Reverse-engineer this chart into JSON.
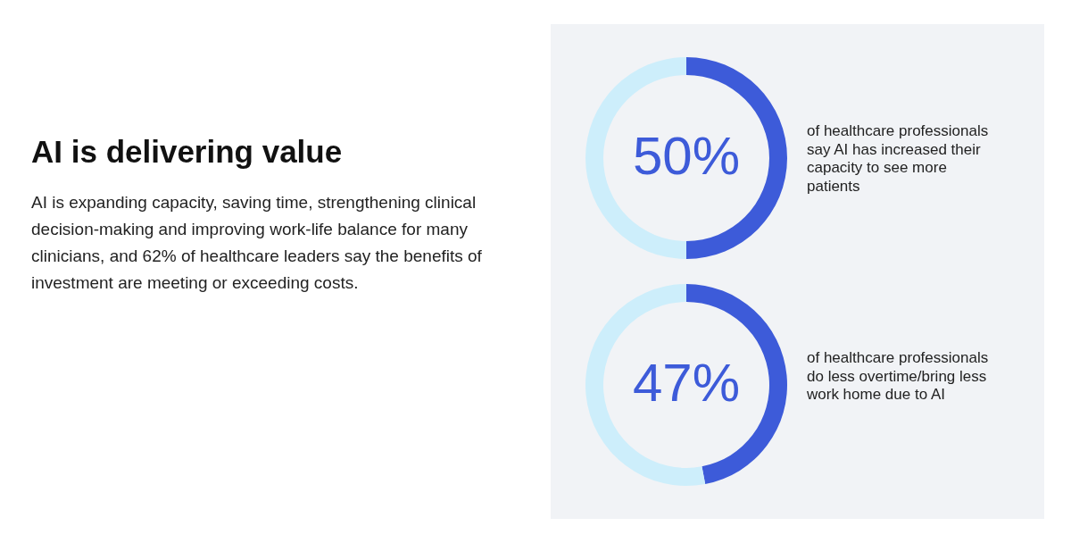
{
  "chart_data": [
    {
      "type": "other",
      "title": "AI is delivering value",
      "subtitle": "AI is expanding capacity, saving time, strengthening clinical decision-making and improving work-life balance for many clinicians, and 62% of healthcare leaders say the benefits of investment are meeting or exceeding costs."
    },
    {
      "type": "donut",
      "categories": [
        null,
        null
      ],
      "values": [
        50,
        50
      ],
      "colors": [
        "#3d5bd9",
        "#cdeefb"
      ],
      "value_labels": [
        "50%",
        null
      ],
      "annotations": [
        "of healthcare professionals say AI has increased their capacity to see more patients"
      ]
    },
    {
      "type": "donut",
      "categories": [
        null,
        null
      ],
      "values": [
        47,
        53
      ],
      "colors": [
        "#3d5bd9",
        "#cdeefb"
      ],
      "value_labels": [
        "47%",
        null
      ],
      "annotations": [
        "of healthcare professionals do less overtime/bring less work home due to AI"
      ]
    }
  ]
}
